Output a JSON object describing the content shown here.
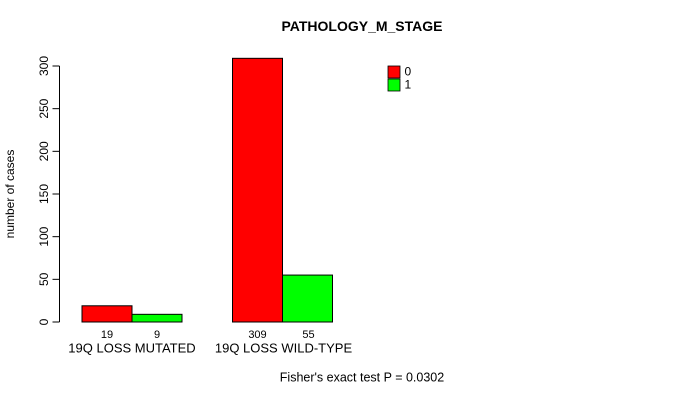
{
  "chart_data": {
    "type": "bar",
    "title": "PATHOLOGY_M_STAGE",
    "xlabel": "",
    "ylabel": "number of cases",
    "ylim": [
      0,
      300
    ],
    "yticks": [
      0,
      50,
      100,
      150,
      200,
      250,
      300
    ],
    "grid": false,
    "legend_position": "top-right-inside",
    "categories": [
      "19Q LOSS MUTATED",
      "19Q LOSS WILD-TYPE"
    ],
    "series": [
      {
        "name": "0",
        "color": "#ff0000",
        "values": [
          19,
          309
        ]
      },
      {
        "name": "1",
        "color": "#00ff00",
        "values": [
          9,
          55
        ]
      }
    ],
    "bar_value_labels": [
      [
        19,
        9
      ],
      [
        309,
        55
      ]
    ],
    "footnote": "Fisher's exact test P = 0.0302",
    "axis_color": "#000000",
    "bar_border_color": "#000000"
  }
}
